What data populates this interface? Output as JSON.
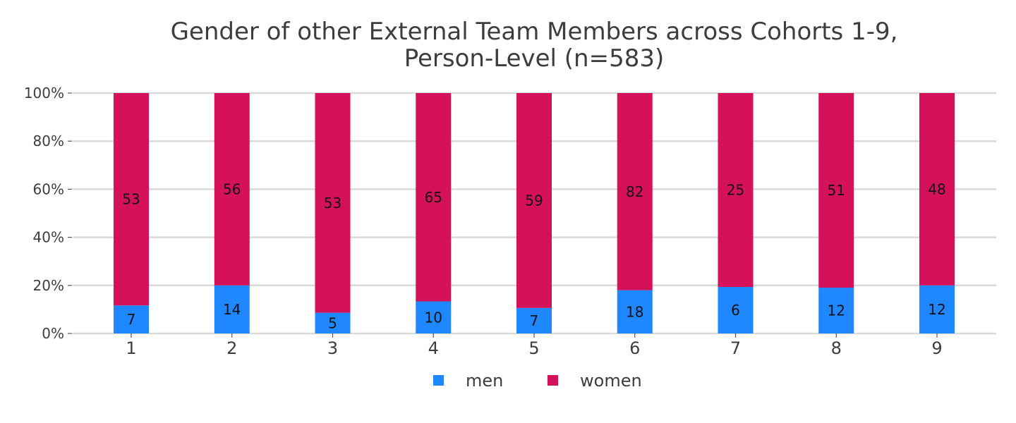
{
  "chart_data": {
    "type": "bar",
    "stacked": true,
    "normalized": true,
    "title": "Gender of other External Team Members across Cohorts 1-9, Person-Level (n=583)",
    "title_lines": [
      "Gender of other External Team Members across Cohorts 1-9,",
      "Person-Level (n=583)"
    ],
    "categories": [
      "1",
      "2",
      "3",
      "4",
      "5",
      "6",
      "7",
      "8",
      "9"
    ],
    "series": [
      {
        "name": "men",
        "color": "#1f87ff",
        "values": [
          7,
          14,
          5,
          10,
          7,
          18,
          6,
          12,
          12
        ]
      },
      {
        "name": "women",
        "color": "#d41159",
        "values": [
          53,
          56,
          53,
          65,
          59,
          82,
          25,
          51,
          48
        ]
      }
    ],
    "ylim": [
      0,
      100
    ],
    "yticks": [
      "0%",
      "20%",
      "40%",
      "60%",
      "80%",
      "100%"
    ],
    "ytick_values": [
      0,
      20,
      40,
      60,
      80,
      100
    ],
    "grid": true,
    "legend_position": "bottom-center",
    "colors": {
      "grid": "#d9d9d9",
      "text": "#3d3d3d"
    }
  }
}
